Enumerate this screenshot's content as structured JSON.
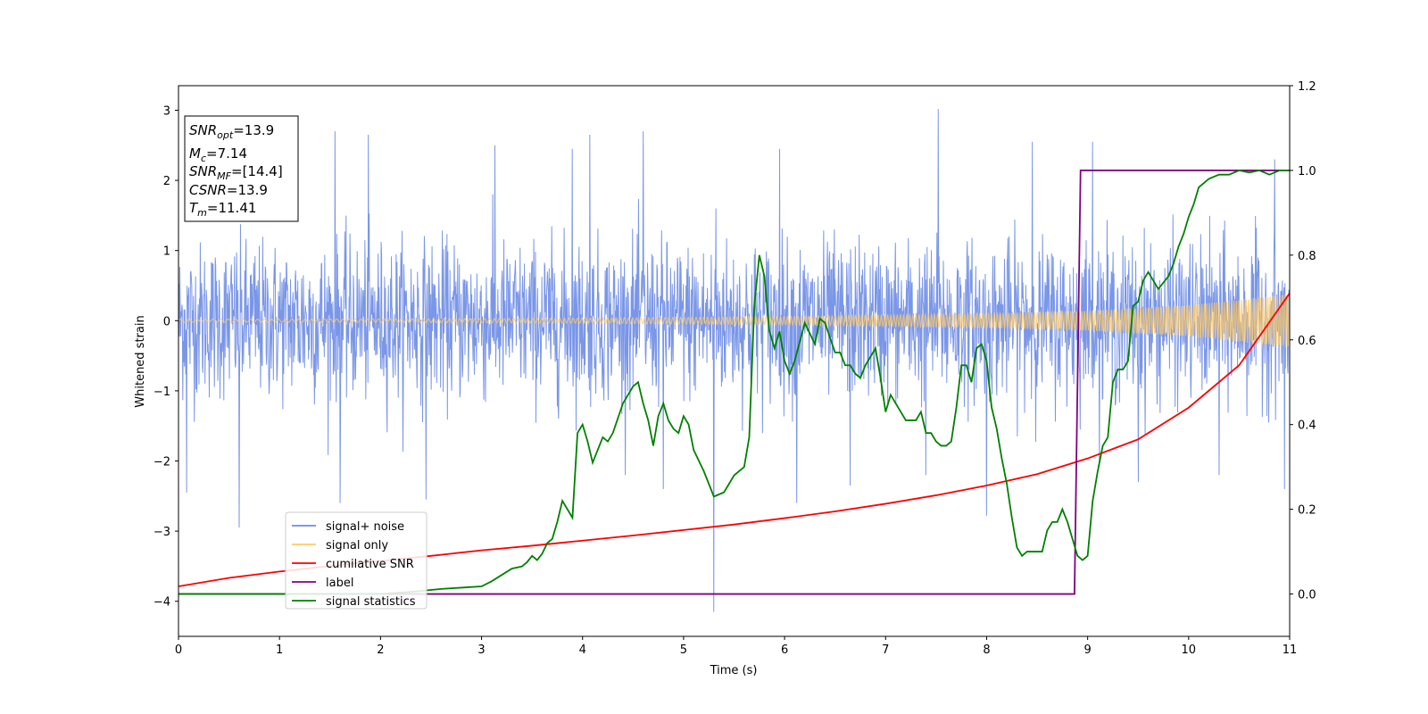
{
  "chart_data": {
    "type": "line",
    "title": "",
    "xlabel": "Time (s)",
    "ylabel": "Whitened strain",
    "xlim": [
      0,
      11
    ],
    "ylim": [
      -4.5,
      3.35
    ],
    "y2lim": [
      -0.1,
      1.2
    ],
    "x_ticks": [
      "0",
      "1",
      "2",
      "3",
      "4",
      "5",
      "6",
      "7",
      "8",
      "9",
      "10",
      "11"
    ],
    "y_ticks": [
      "3",
      "2",
      "1",
      "0",
      "−1",
      "−2",
      "−3",
      "−4"
    ],
    "y2_ticks": [
      "1.2",
      "1.0",
      "0.8",
      "0.6",
      "0.4",
      "0.2",
      "0.0"
    ],
    "grid": false,
    "legend_position": "lower-left",
    "legend": [
      {
        "name": "signal+ noise",
        "color": "#6b8be6"
      },
      {
        "name": "signal only",
        "color": "#ffc966"
      },
      {
        "name": "cumilative SNR",
        "color": "#ff0000"
      },
      {
        "name": "label",
        "color": "#800080"
      },
      {
        "name": "signal statistics",
        "color": "#008000"
      }
    ],
    "annotation": {
      "snr_opt_base": "SNR",
      "snr_opt_sub": "opt",
      "snr_opt_value": "=13.9",
      "mc_base": "M",
      "mc_sub": "c",
      "mc_value": "=7.14",
      "snr_mf_base": "SNR",
      "snr_mf_sub": "MF",
      "snr_mf_value": "=[14.4]",
      "csnr_base": "CSNR",
      "csnr_value": "=13.9",
      "tm_base": "T",
      "tm_sub": "m",
      "tm_value": "=11.41"
    },
    "series": [
      {
        "name": "signal+ noise",
        "axis": "left",
        "color": "#6b8be6",
        "description_noise_sigma": 0.55,
        "spikes": [
          [
            0.6,
            -2.95
          ],
          [
            1.55,
            2.7
          ],
          [
            1.88,
            2.65
          ],
          [
            4.07,
            2.65
          ],
          [
            4.6,
            2.7
          ],
          [
            5.3,
            -4.15
          ],
          [
            5.32,
            1.6
          ],
          [
            6.12,
            -2.6
          ],
          [
            7.52,
            3.02
          ],
          [
            8.0,
            -2.78
          ],
          [
            9.05,
            2.55
          ],
          [
            10.95,
            -2.4
          ],
          [
            0.08,
            -2.45
          ],
          [
            1.6,
            -2.6
          ],
          [
            2.45,
            -2.55
          ],
          [
            3.13,
            2.5
          ],
          [
            3.9,
            2.45
          ],
          [
            4.8,
            -2.4
          ],
          [
            5.95,
            2.45
          ],
          [
            6.65,
            -2.35
          ],
          [
            7.4,
            -2.2
          ],
          [
            8.45,
            2.55
          ],
          [
            9.5,
            -2.3
          ],
          [
            10.3,
            -2.2
          ],
          [
            10.85,
            2.3
          ]
        ]
      },
      {
        "name": "signal only",
        "axis": "left",
        "color": "#ffc966",
        "amplitude_envelope": [
          [
            0,
            0.02
          ],
          [
            2,
            0.025
          ],
          [
            4,
            0.035
          ],
          [
            6,
            0.06
          ],
          [
            8,
            0.1
          ],
          [
            9,
            0.14
          ],
          [
            10,
            0.22
          ],
          [
            11,
            0.38
          ]
        ]
      },
      {
        "name": "cumilative SNR",
        "axis": "right",
        "color": "#ff0000",
        "x": [
          0,
          0.5,
          1,
          1.5,
          2,
          2.5,
          3,
          3.5,
          4,
          4.5,
          5,
          5.5,
          6,
          6.5,
          7,
          7.5,
          8,
          8.5,
          9,
          9.5,
          10,
          10.5,
          11
        ],
        "values": [
          0.018,
          0.038,
          0.053,
          0.066,
          0.078,
          0.09,
          0.103,
          0.114,
          0.126,
          0.138,
          0.151,
          0.164,
          0.179,
          0.195,
          0.213,
          0.233,
          0.256,
          0.283,
          0.32,
          0.365,
          0.44,
          0.54,
          0.71
        ]
      },
      {
        "name": "label",
        "axis": "right",
        "color": "#800080",
        "x": [
          0,
          8.87,
          8.93,
          11
        ],
        "values": [
          0.0,
          0.0,
          1.0,
          1.0
        ]
      },
      {
        "name": "signal statistics",
        "axis": "right",
        "color": "#008000",
        "x": [
          0,
          1,
          2,
          2.3,
          2.6,
          2.8,
          3.0,
          3.1,
          3.2,
          3.3,
          3.4,
          3.45,
          3.5,
          3.55,
          3.6,
          3.65,
          3.7,
          3.75,
          3.8,
          3.85,
          3.9,
          3.95,
          4.0,
          4.05,
          4.1,
          4.15,
          4.2,
          4.25,
          4.3,
          4.4,
          4.5,
          4.55,
          4.6,
          4.65,
          4.7,
          4.75,
          4.8,
          4.85,
          4.9,
          4.95,
          5.0,
          5.05,
          5.1,
          5.2,
          5.3,
          5.4,
          5.5,
          5.6,
          5.65,
          5.7,
          5.75,
          5.8,
          5.85,
          5.9,
          5.95,
          6.0,
          6.05,
          6.1,
          6.2,
          6.3,
          6.35,
          6.4,
          6.5,
          6.55,
          6.6,
          6.65,
          6.7,
          6.75,
          6.8,
          6.85,
          6.9,
          6.95,
          7.0,
          7.05,
          7.1,
          7.2,
          7.3,
          7.35,
          7.4,
          7.45,
          7.5,
          7.55,
          7.6,
          7.65,
          7.7,
          7.75,
          7.8,
          7.85,
          7.9,
          7.95,
          8.0,
          8.05,
          8.1,
          8.15,
          8.2,
          8.25,
          8.3,
          8.35,
          8.4,
          8.45,
          8.5,
          8.55,
          8.6,
          8.65,
          8.7,
          8.75,
          8.8,
          8.85,
          8.9,
          8.95,
          9.0,
          9.05,
          9.1,
          9.15,
          9.2,
          9.25,
          9.3,
          9.35,
          9.4,
          9.45,
          9.5,
          9.55,
          9.6,
          9.7,
          9.8,
          9.85,
          9.9,
          9.95,
          10.0,
          10.05,
          10.1,
          10.2,
          10.3,
          10.4,
          10.5,
          10.6,
          10.7,
          10.8,
          10.9,
          11.0
        ],
        "values": [
          0.0,
          0.0,
          0.0,
          0.005,
          0.012,
          0.015,
          0.018,
          0.03,
          0.045,
          0.06,
          0.065,
          0.075,
          0.09,
          0.08,
          0.095,
          0.12,
          0.13,
          0.17,
          0.22,
          0.2,
          0.18,
          0.38,
          0.4,
          0.36,
          0.31,
          0.34,
          0.37,
          0.36,
          0.38,
          0.45,
          0.49,
          0.5,
          0.45,
          0.41,
          0.35,
          0.42,
          0.45,
          0.41,
          0.39,
          0.38,
          0.42,
          0.4,
          0.34,
          0.29,
          0.23,
          0.24,
          0.28,
          0.3,
          0.37,
          0.68,
          0.8,
          0.75,
          0.62,
          0.58,
          0.62,
          0.55,
          0.52,
          0.55,
          0.64,
          0.59,
          0.65,
          0.64,
          0.57,
          0.57,
          0.54,
          0.54,
          0.52,
          0.51,
          0.54,
          0.56,
          0.58,
          0.51,
          0.43,
          0.47,
          0.45,
          0.41,
          0.41,
          0.43,
          0.38,
          0.38,
          0.36,
          0.35,
          0.35,
          0.36,
          0.44,
          0.54,
          0.54,
          0.5,
          0.58,
          0.59,
          0.55,
          0.44,
          0.39,
          0.32,
          0.26,
          0.18,
          0.11,
          0.09,
          0.1,
          0.1,
          0.1,
          0.1,
          0.15,
          0.17,
          0.17,
          0.2,
          0.17,
          0.13,
          0.09,
          0.08,
          0.09,
          0.22,
          0.29,
          0.35,
          0.37,
          0.5,
          0.53,
          0.53,
          0.55,
          0.68,
          0.69,
          0.74,
          0.76,
          0.72,
          0.75,
          0.78,
          0.82,
          0.85,
          0.89,
          0.92,
          0.96,
          0.98,
          0.99,
          0.99,
          1.0,
          0.995,
          1.0,
          0.99,
          1.0,
          1.0
        ]
      }
    ]
  }
}
